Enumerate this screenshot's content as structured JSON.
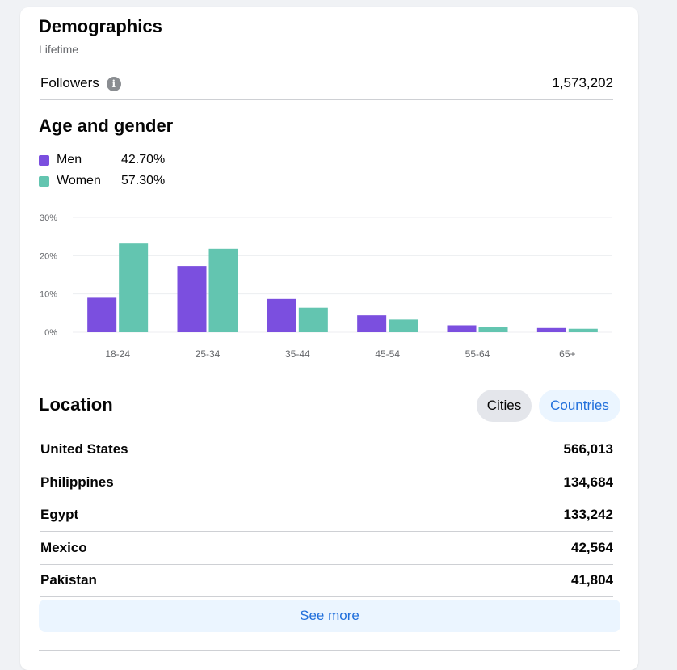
{
  "demographics": {
    "title": "Demographics",
    "period": "Lifetime",
    "followers_label": "Followers",
    "followers_value": "1,573,202"
  },
  "age_gender": {
    "title": "Age and gender",
    "legend": [
      {
        "label": "Men",
        "value": "42.70%",
        "color": "#7b4fdf"
      },
      {
        "label": "Women",
        "value": "57.30%",
        "color": "#63c5b0"
      }
    ]
  },
  "chart_data": {
    "type": "bar",
    "categories": [
      "18-24",
      "25-34",
      "35-44",
      "45-54",
      "55-64",
      "65+"
    ],
    "series": [
      {
        "name": "Men",
        "values": [
          9.0,
          17.3,
          8.7,
          4.4,
          1.8,
          1.1
        ],
        "color": "#7b4fdf"
      },
      {
        "name": "Women",
        "values": [
          23.2,
          21.8,
          6.4,
          3.3,
          1.3,
          0.9
        ],
        "color": "#63c5b0"
      }
    ],
    "ylim": [
      0,
      30
    ],
    "yticks": [
      "0%",
      "10%",
      "20%",
      "30%"
    ],
    "grid": true
  },
  "location": {
    "title": "Location",
    "filters": {
      "cities": "Cities",
      "countries": "Countries"
    },
    "rows": [
      {
        "name": "United States",
        "value": "566,013"
      },
      {
        "name": "Philippines",
        "value": "134,684"
      },
      {
        "name": "Egypt",
        "value": "133,242"
      },
      {
        "name": "Mexico",
        "value": "42,564"
      },
      {
        "name": "Pakistan",
        "value": "41,804"
      }
    ],
    "see_more": "See more"
  }
}
